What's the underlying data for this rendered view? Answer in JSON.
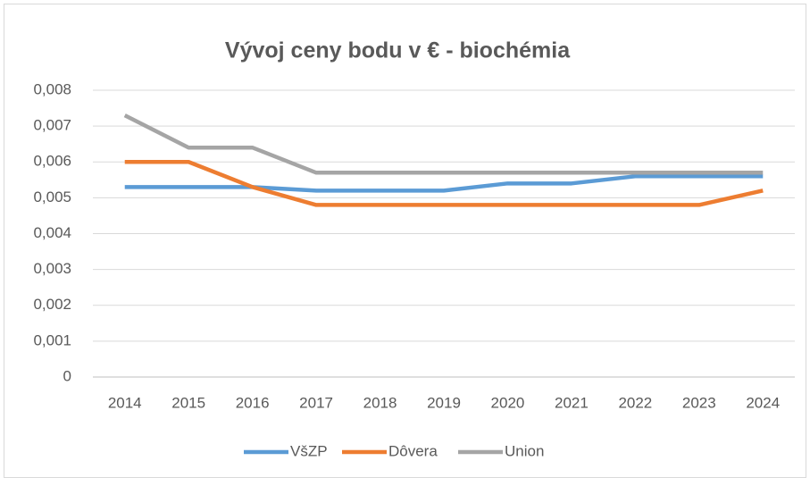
{
  "chart_data": {
    "type": "line",
    "title": "Vývoj ceny bodu v € - biochémia",
    "categories": [
      "2014",
      "2015",
      "2016",
      "2017",
      "2018",
      "2019",
      "2020",
      "2021",
      "2022",
      "2023",
      "2024"
    ],
    "series": [
      {
        "name": "VšZP",
        "color": "#5b9bd5",
        "values": [
          0.0053,
          0.0053,
          0.0053,
          0.0052,
          0.0052,
          0.0052,
          0.0054,
          0.0054,
          0.0056,
          0.0056,
          0.0056
        ]
      },
      {
        "name": "Dôvera",
        "color": "#ed7d31",
        "values": [
          0.006,
          0.006,
          0.0053,
          0.0048,
          0.0048,
          0.0048,
          0.0048,
          0.0048,
          0.0048,
          0.0048,
          0.0052
        ]
      },
      {
        "name": "Union",
        "color": "#a5a5a5",
        "values": [
          0.0073,
          0.0064,
          0.0064,
          0.0057,
          0.0057,
          0.0057,
          0.0057,
          0.0057,
          0.0057,
          0.0057,
          0.0057
        ]
      }
    ],
    "ylim": [
      0,
      0.008
    ],
    "yticks": [
      0,
      {
        "value": 0.001,
        "label": "0,001"
      },
      {
        "value": 0.002,
        "label": "0,002"
      },
      {
        "value": 0.003,
        "label": "0,003"
      },
      {
        "value": 0.004,
        "label": "0,004"
      },
      {
        "value": 0.005,
        "label": "0,005"
      },
      {
        "value": 0.006,
        "label": "0,006"
      },
      {
        "value": 0.007,
        "label": "0,007"
      },
      {
        "value": 0.008,
        "label": "0,008"
      }
    ],
    "grid": true,
    "legend": "bottom"
  }
}
